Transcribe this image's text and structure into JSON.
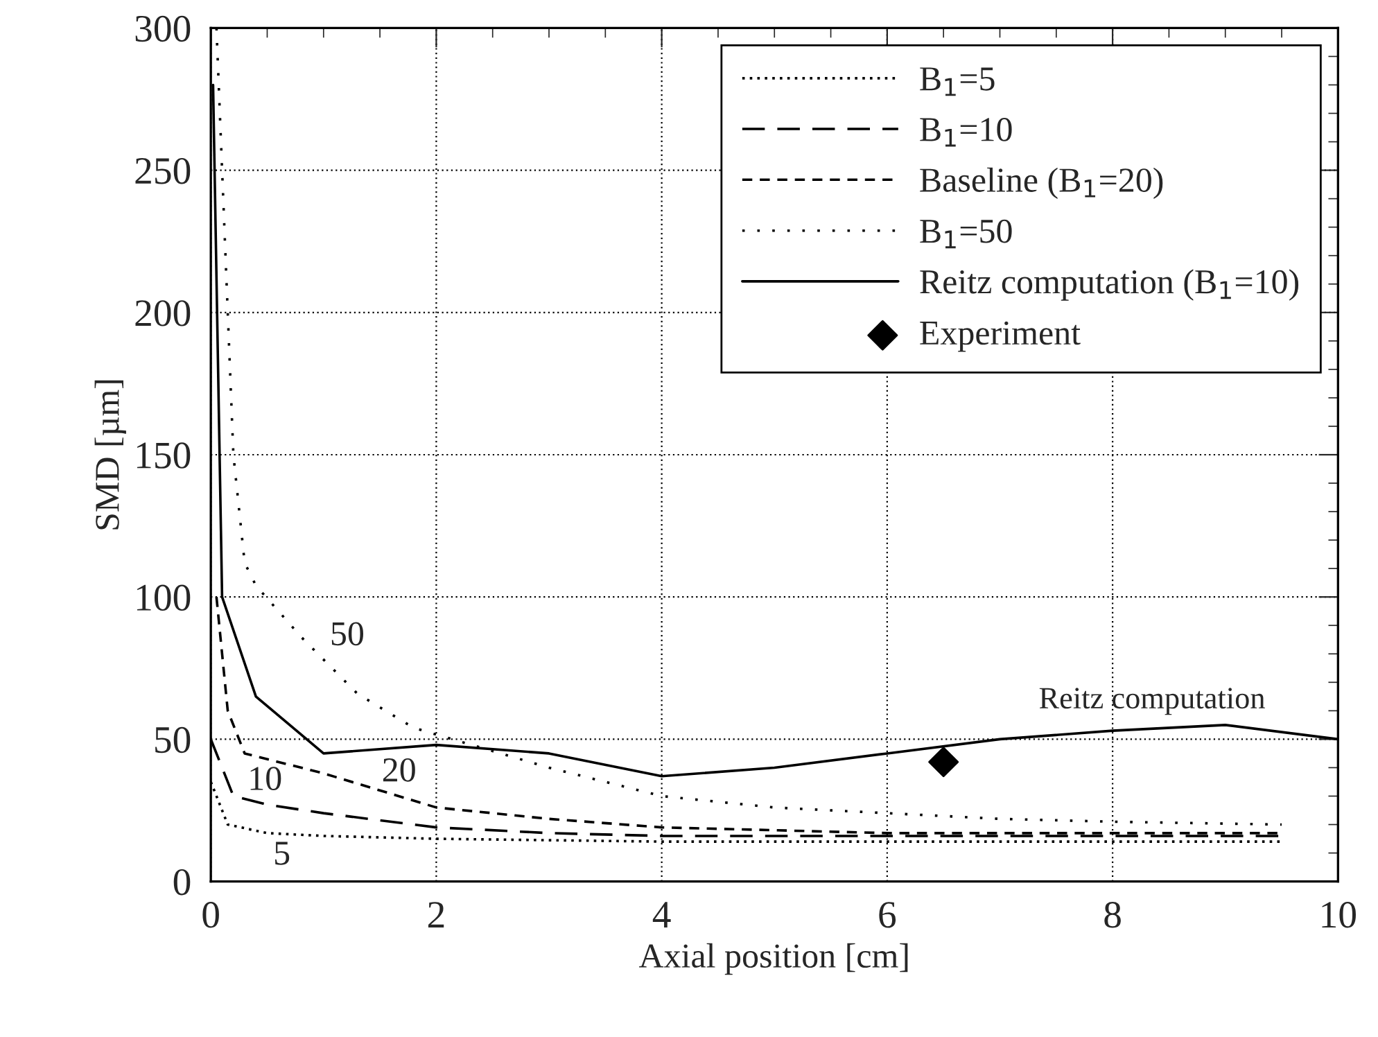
{
  "chart_data": {
    "type": "line",
    "xlabel": "Axial position [cm]",
    "ylabel": "SMD [µm]",
    "xlim": [
      0,
      10
    ],
    "ylim": [
      0,
      300
    ],
    "xticks": [
      0,
      2,
      4,
      6,
      8,
      10
    ],
    "yticks": [
      0,
      50,
      100,
      150,
      200,
      250,
      300
    ],
    "grid": true,
    "legend": "top right",
    "marker": "none",
    "series": [
      {
        "name": "B$_{1}$=5",
        "color": "#000000",
        "line_style": "dotted",
        "x": [
          0,
          0.15,
          0.5,
          1,
          2,
          4,
          6,
          8,
          9.5
        ],
        "values": [
          35,
          20,
          17,
          16,
          15,
          14,
          14,
          14,
          14
        ]
      },
      {
        "name": "B$_{1}$=10",
        "color": "#000000",
        "line_style": "dashed",
        "x": [
          0,
          0.2,
          0.5,
          1,
          2,
          3,
          4,
          6,
          8,
          9.5
        ],
        "values": [
          50,
          30,
          27,
          24,
          19,
          17,
          16,
          16,
          16,
          16
        ]
      },
      {
        "name": "Baseline (B$_{1}$=20)",
        "color": "#000000",
        "line_style": "dashed",
        "x": [
          0.05,
          0.15,
          0.3,
          1,
          2,
          3,
          4,
          5,
          6,
          7,
          8,
          9.5
        ],
        "values": [
          100,
          60,
          45,
          38,
          26,
          22,
          19,
          18,
          17,
          17,
          17,
          17
        ]
      },
      {
        "name": "B$_{1}$=50",
        "color": "#000000",
        "line_style": "dotted",
        "x": [
          0.05,
          0.1,
          0.2,
          0.3,
          0.4,
          0.8,
          1.3,
          1.8,
          3,
          4,
          5,
          6,
          7,
          8,
          9.5
        ],
        "values": [
          300,
          250,
          150,
          112,
          104,
          86,
          66,
          54,
          40,
          30,
          26,
          24,
          22,
          21,
          20
        ]
      },
      {
        "name": "Reitz computation (B$_{1}$=10)",
        "color": "#000000",
        "line_style": "solid",
        "x": [
          0.02,
          0.1,
          0.4,
          1,
          2,
          3,
          4,
          5,
          6,
          7,
          8,
          9,
          10
        ],
        "values": [
          280,
          100,
          65,
          45,
          48,
          45,
          37,
          40,
          45,
          50,
          53,
          55,
          50
        ]
      },
      {
        "name": "Experiment",
        "type": "scatter",
        "color": "#000000",
        "marker": "diamond",
        "x": [
          6.5
        ],
        "values": [
          42
        ]
      }
    ],
    "annotations": [
      {
        "text": "50",
        "x": 0.8,
        "y": 86
      },
      {
        "text": "20",
        "x": 1.67,
        "y": 30
      },
      {
        "text": "10",
        "x": 0.48,
        "y": 27
      },
      {
        "text": "5",
        "x": 0.63,
        "y": 17
      },
      {
        "text": "Reitz computation",
        "x": 8.35,
        "y": 54
      }
    ]
  }
}
